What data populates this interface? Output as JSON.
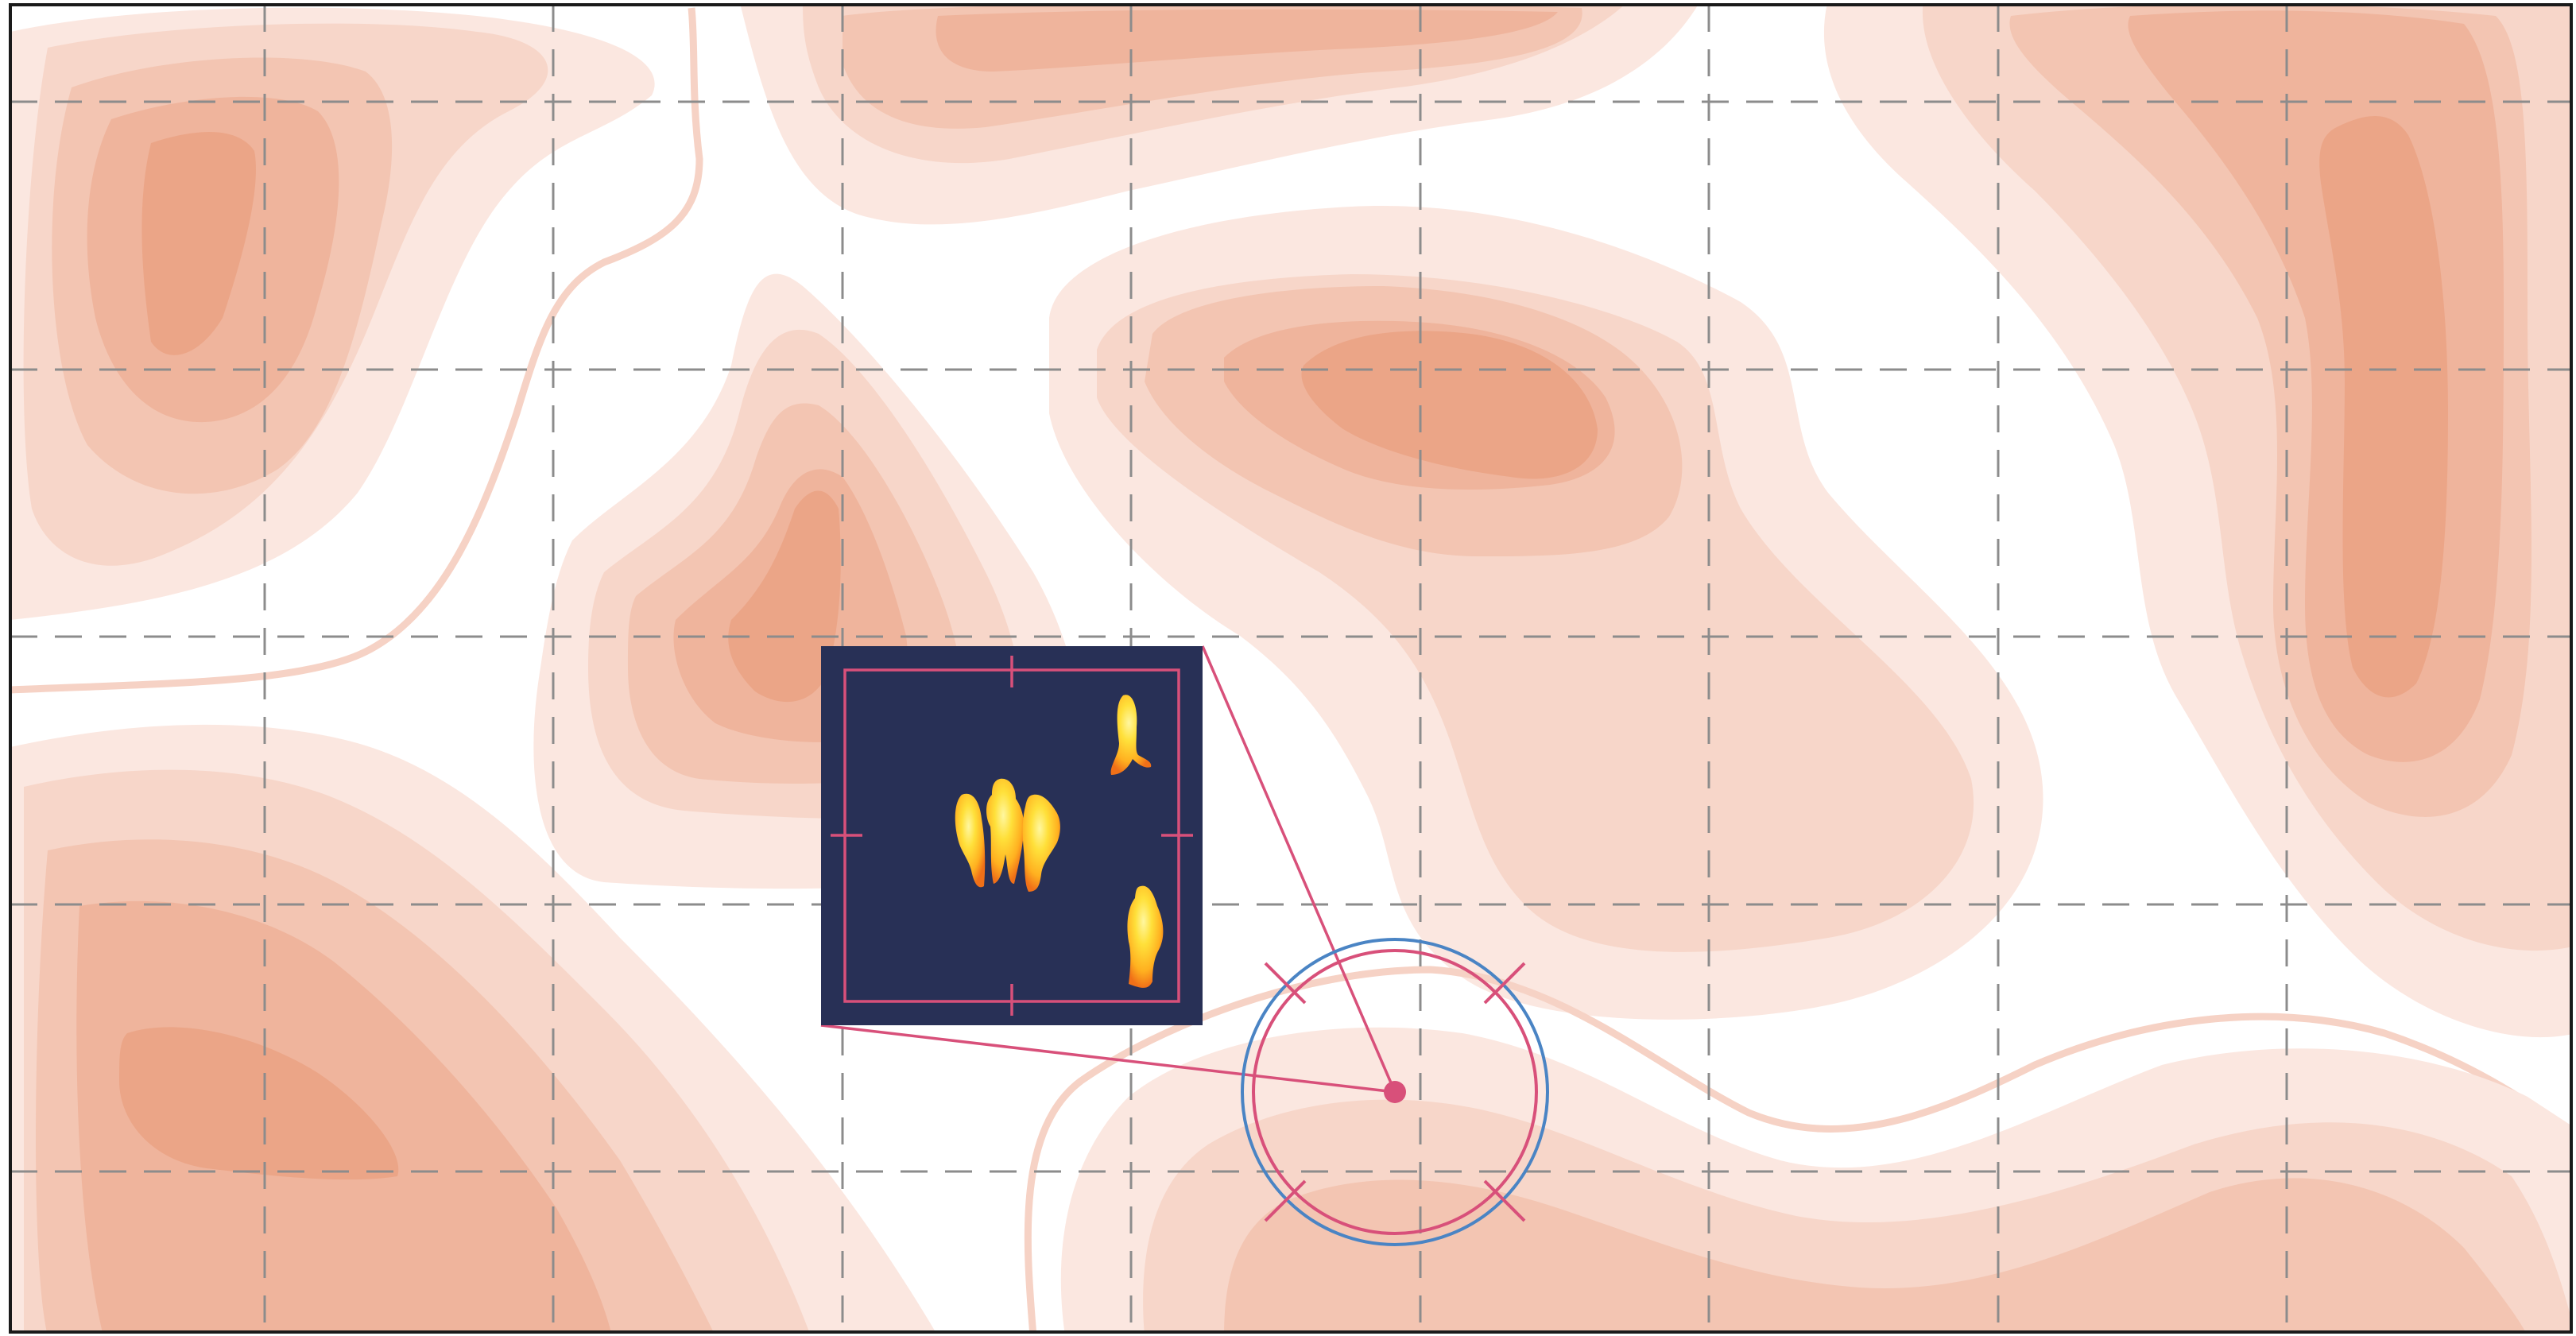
{
  "map": {
    "background": "#ffffff",
    "frame_color": "#1a1a1a",
    "contour_colors": [
      "#fbe7e0",
      "#f7d6c9",
      "#f3c5b2",
      "#efb49c",
      "#eba587"
    ],
    "contour_line_color": "#f6d2c5",
    "grid": {
      "visible": true,
      "style": "dashed",
      "color": "#8c8c8c",
      "columns": 9,
      "rows": 5
    }
  },
  "inset": {
    "name": "thermal-detail",
    "background": "#283056",
    "bracket_color": "#d8507a",
    "hotspot_colors": [
      "#ffe03a",
      "#ffb020",
      "#f07018",
      "#e0a0a0"
    ],
    "hotspot_count": 4
  },
  "target": {
    "ring_outer_color": "#4a84c4",
    "ring_inner_color": "#d8507a",
    "marker_color": "#d8507a",
    "leader_color": "#d8507a"
  }
}
